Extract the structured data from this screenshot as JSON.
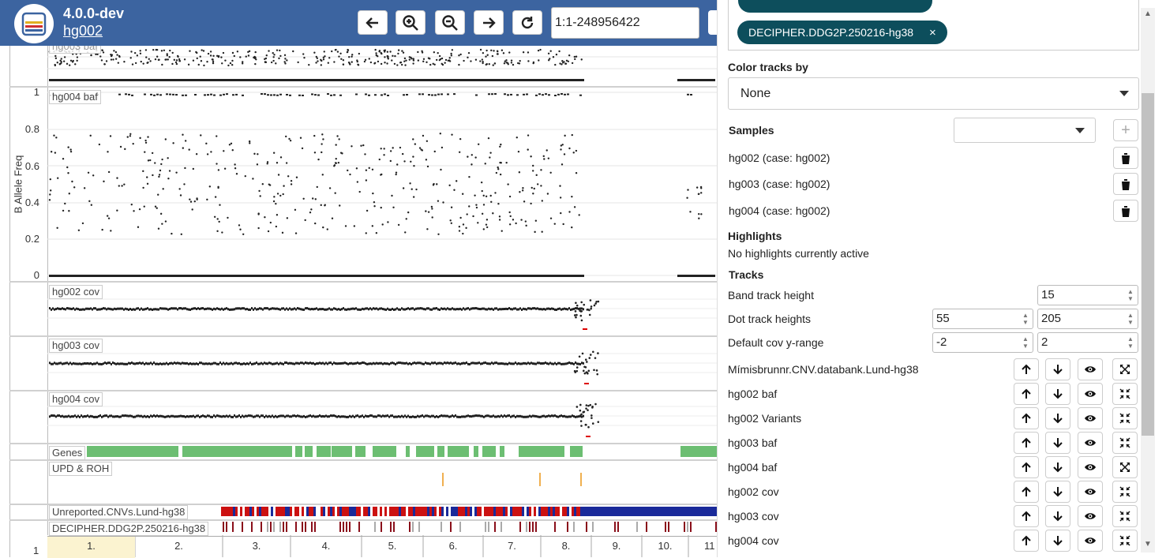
{
  "header": {
    "version": "4.0.0-dev",
    "case": "hg002",
    "region": "1:1-248956422"
  },
  "viewer": {
    "yaxis_label": "B Allele Freq",
    "yticks": [
      "1",
      "0.8",
      "0.6",
      "0.4",
      "0.2",
      "0"
    ],
    "tracks": {
      "hg004_baf": "hg004 baf",
      "hg002_cov": "hg002 cov",
      "hg003_cov": "hg003 cov",
      "hg004_cov": "hg004 cov",
      "genes": "Genes",
      "upd": "UPD & ROH",
      "unreported": "Unreported.CNVs.Lund-hg38",
      "decipher": "DECIPHER.DDG2P.250216-hg38"
    },
    "chromosomes": [
      "1.",
      "2.",
      "3.",
      "4.",
      "5.",
      "6.",
      "7.",
      "8.",
      "9.",
      "10.",
      "11"
    ],
    "left_tick": "1"
  },
  "side": {
    "tag": "DECIPHER.DDG2P.250216-hg38",
    "color_label": "Color tracks by",
    "color_value": "None",
    "samples_label": "Samples",
    "samples": [
      "hg002 (case: hg002)",
      "hg003 (case: hg002)",
      "hg004 (case: hg002)"
    ],
    "highlights_label": "Highlights",
    "highlights_text": "No highlights currently active",
    "tracks_label": "Tracks",
    "band_height_label": "Band track height",
    "band_height": "15",
    "dot_heights_label": "Dot track heights",
    "dot_height_1": "55",
    "dot_height_2": "205",
    "cov_range_label": "Default cov y-range",
    "cov_min": "-2",
    "cov_max": "2",
    "track_list": [
      "Mímisbrunnr.CNV.databank.Lund-hg38",
      "hg002 baf",
      "hg002 Variants",
      "hg003 baf",
      "hg004 baf",
      "hg002 cov",
      "hg003 cov",
      "hg004 cov"
    ]
  }
}
